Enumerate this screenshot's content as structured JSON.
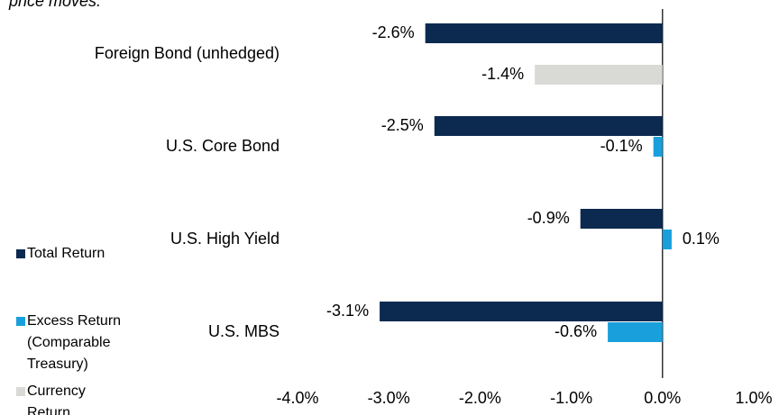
{
  "chart_data": {
    "type": "hbar",
    "title": "price moves.",
    "categories": [
      "Foreign Bond (unhedged)",
      "U.S. Core Bond",
      "U.S. High Yield",
      "U.S. MBS"
    ],
    "series": [
      {
        "name": "Total Return",
        "color": "#0c2a50",
        "values": [
          -2.6,
          -2.5,
          -0.9,
          -3.1
        ],
        "value_labels": [
          "-2.6%",
          "-2.5%",
          "-0.9%",
          "-3.1%"
        ]
      },
      {
        "name": "Excess Return (Comparable Treasury)",
        "color": "#19a0dc",
        "values": [
          null,
          -0.1,
          0.1,
          -0.6
        ],
        "value_labels": [
          null,
          "-0.1%",
          "0.1%",
          "-0.6%"
        ]
      },
      {
        "name": "Currency Return",
        "color": "#d9d9d6",
        "values": [
          -1.4,
          null,
          null,
          null
        ],
        "value_labels": [
          "-1.4%",
          null,
          null,
          null
        ]
      }
    ],
    "xlim": [
      -4,
      1
    ],
    "xticks": [
      {
        "value": -4,
        "label": "-4.0%"
      },
      {
        "value": -3,
        "label": "-3.0%"
      },
      {
        "value": -2,
        "label": "-2.0%"
      },
      {
        "value": -1,
        "label": "-1.0%"
      },
      {
        "value": 0,
        "label": "0.0%"
      },
      {
        "value": 1,
        "label": "1.0%"
      }
    ],
    "legend": "left"
  }
}
